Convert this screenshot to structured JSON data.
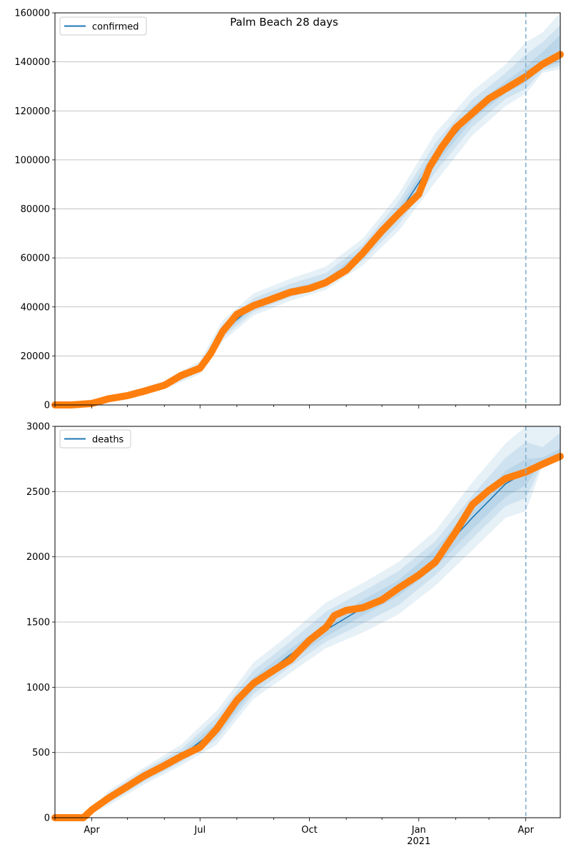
{
  "figure": {
    "title": "Palm Beach 28 days"
  },
  "chart_data": [
    {
      "type": "line",
      "legend": {
        "label": "confirmed",
        "placement": "upper-left"
      },
      "ylim": [
        0,
        160000
      ],
      "yticks": [
        0,
        20000,
        40000,
        60000,
        80000,
        100000,
        120000,
        140000,
        160000
      ],
      "grid": "horizontal",
      "xlim": [
        "2020-03-01",
        "2021-04-30"
      ],
      "forecast_start": "2021-04-01",
      "observed_series": {
        "x": [
          "2020-03-01",
          "2020-03-15",
          "2020-04-01",
          "2020-04-15",
          "2020-05-01",
          "2020-05-15",
          "2020-06-01",
          "2020-06-15",
          "2020-07-01",
          "2020-07-10",
          "2020-07-20",
          "2020-08-01",
          "2020-08-15",
          "2020-09-01",
          "2020-09-15",
          "2020-10-01",
          "2020-10-15",
          "2020-11-01",
          "2020-11-15",
          "2020-12-01",
          "2020-12-15",
          "2021-01-01",
          "2021-01-10",
          "2021-01-20",
          "2021-02-01",
          "2021-02-15",
          "2021-03-01",
          "2021-03-15",
          "2021-04-01",
          "2021-04-15",
          "2021-04-30"
        ],
        "values": [
          0,
          0,
          600,
          2500,
          3800,
          5600,
          8000,
          12000,
          15000,
          21000,
          30000,
          37000,
          40500,
          43500,
          46000,
          47500,
          50000,
          55000,
          62000,
          71000,
          78000,
          86000,
          97000,
          105000,
          113000,
          119000,
          125000,
          129000,
          134000,
          139000,
          143000
        ]
      },
      "band_series": {
        "x": [
          "2020-03-01",
          "2020-04-01",
          "2020-05-01",
          "2020-06-01",
          "2020-07-01",
          "2020-07-20",
          "2020-08-15",
          "2020-09-15",
          "2020-10-15",
          "2020-11-15",
          "2020-12-15",
          "2021-01-15",
          "2021-02-15",
          "2021-03-15",
          "2021-04-01",
          "2021-04-15",
          "2021-04-30"
        ],
        "center": [
          0,
          600,
          3800,
          8000,
          15000,
          30000,
          40500,
          46000,
          50000,
          62000,
          78000,
          101000,
          119000,
          129000,
          134000,
          139000,
          143000
        ],
        "bands": [
          {
            "lower": [
              0,
              0,
              2800,
              6500,
              12500,
              26000,
              36500,
              42500,
              47000,
              57000,
              71000,
              91000,
              110000,
              122000,
              127000,
              135500,
              137000
            ],
            "upper": [
              0,
              1200,
              5000,
              9800,
              18000,
              34500,
              45500,
              51500,
              56500,
              68000,
              86000,
              111000,
              128000,
              139000,
              148000,
              152000,
              160000
            ]
          },
          {
            "lower": [
              0,
              200,
              3200,
              7100,
              13500,
              27500,
              38000,
              44000,
              48200,
              59000,
              73500,
              95000,
              113500,
              125000,
              129000,
              136500,
              138500
            ],
            "upper": [
              0,
              1000,
              4500,
              9100,
              16800,
              32800,
              43500,
              49500,
              53800,
              65500,
              83000,
              107000,
              124500,
              135500,
              143000,
              148000,
              155000
            ]
          },
          {
            "lower": [
              0,
              400,
              3500,
              7600,
              14300,
              28800,
              39300,
              45000,
              49100,
              60500,
              75800,
              98000,
              116300,
              127300,
              131500,
              137500,
              140000
            ],
            "upper": [
              0,
              800,
              4100,
              8500,
              15800,
              31300,
              41800,
              47500,
              51200,
              63800,
              80300,
              104000,
              121800,
              132000,
              138000,
              144000,
              151000
            ]
          }
        ]
      }
    },
    {
      "type": "line",
      "legend": {
        "label": "deaths",
        "placement": "upper-left"
      },
      "ylim": [
        0,
        3000
      ],
      "yticks": [
        0,
        500,
        1000,
        1500,
        2000,
        2500,
        3000
      ],
      "grid": "horizontal",
      "xlim": [
        "2020-03-01",
        "2021-04-30"
      ],
      "forecast_start": "2021-04-01",
      "xtick_labels": [
        {
          "date": "2020-04-01",
          "label": "Apr"
        },
        {
          "date": "2020-07-01",
          "label": "Jul"
        },
        {
          "date": "2020-10-01",
          "label": "Oct"
        },
        {
          "date": "2021-01-01",
          "label": "Jan",
          "sublabel": "2021"
        },
        {
          "date": "2021-04-01",
          "label": "Apr"
        }
      ],
      "observed_series": {
        "x": [
          "2020-03-01",
          "2020-03-25",
          "2020-04-01",
          "2020-04-15",
          "2020-05-01",
          "2020-05-15",
          "2020-06-01",
          "2020-06-15",
          "2020-07-01",
          "2020-07-15",
          "2020-08-01",
          "2020-08-15",
          "2020-09-01",
          "2020-09-15",
          "2020-10-01",
          "2020-10-15",
          "2020-10-22",
          "2020-11-01",
          "2020-11-15",
          "2020-12-01",
          "2020-12-15",
          "2021-01-01",
          "2021-01-15",
          "2021-02-01",
          "2021-02-15",
          "2021-03-01",
          "2021-03-15",
          "2021-04-01",
          "2021-04-15",
          "2021-04-30"
        ],
        "values": [
          0,
          0,
          60,
          150,
          240,
          320,
          400,
          470,
          540,
          680,
          900,
          1030,
          1130,
          1210,
          1360,
          1460,
          1550,
          1590,
          1610,
          1670,
          1760,
          1860,
          1960,
          2190,
          2400,
          2510,
          2600,
          2650,
          2710,
          2770
        ]
      },
      "band_series": {
        "x": [
          "2020-03-01",
          "2020-03-25",
          "2020-04-15",
          "2020-05-15",
          "2020-06-15",
          "2020-07-15",
          "2020-08-15",
          "2020-09-15",
          "2020-10-15",
          "2020-11-15",
          "2020-12-15",
          "2021-01-15",
          "2021-02-15",
          "2021-03-15",
          "2021-04-01",
          "2021-04-15",
          "2021-04-30"
        ],
        "center": [
          0,
          0,
          150,
          320,
          470,
          680,
          1030,
          1250,
          1440,
          1610,
          1760,
          1990,
          2300,
          2560,
          2650,
          2710,
          2770
        ],
        "bands": [
          {
            "lower": [
              0,
              0,
              95,
              255,
              400,
              560,
              910,
              1110,
              1300,
              1420,
              1560,
              1780,
              2050,
              2300,
              2350,
              2700,
              2740
            ],
            "upper": [
              0,
              0,
              205,
              385,
              560,
              820,
              1190,
              1410,
              1650,
              1800,
              1960,
              2200,
              2570,
              2870,
              3000,
              3000,
              3000
            ]
          },
          {
            "lower": [
              0,
              0,
              115,
              275,
              425,
              600,
              950,
              1160,
              1350,
              1490,
              1630,
              1860,
              2140,
              2390,
              2450,
              2715,
              2750
            ],
            "upper": [
              0,
              0,
              185,
              365,
              525,
              770,
              1130,
              1350,
              1580,
              1735,
              1890,
              2120,
              2470,
              2760,
              2880,
              2840,
              2950
            ]
          },
          {
            "lower": [
              0,
              0,
              130,
              295,
              445,
              630,
              985,
              1205,
              1390,
              1550,
              1700,
              1920,
              2210,
              2460,
              2550,
              2730,
              2760
            ],
            "upper": [
              0,
              0,
              170,
              345,
              495,
              730,
              1075,
              1295,
              1490,
              1670,
              1820,
              2060,
              2390,
              2660,
              2750,
              2760,
              2830
            ]
          }
        ]
      }
    }
  ]
}
